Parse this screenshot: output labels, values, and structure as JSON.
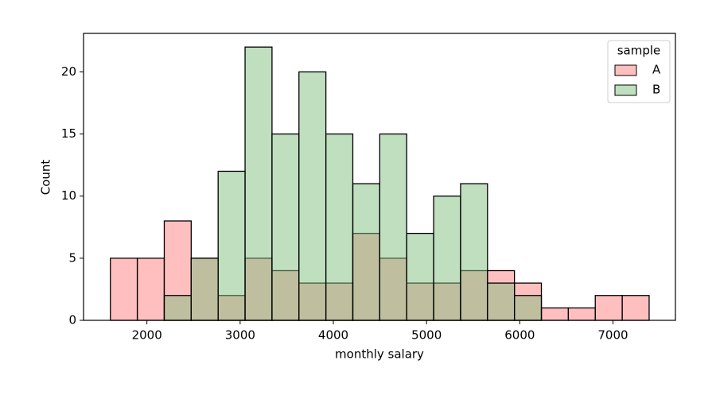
{
  "chart_data": {
    "type": "histogram",
    "xlabel": "monthly salary",
    "ylabel": "Count",
    "bins": [
      1608,
      1897,
      2186,
      2475,
      2764,
      3053,
      3342,
      3631,
      3920,
      4209,
      4498,
      4787,
      5076,
      5365,
      5654,
      5943,
      6232,
      6521,
      6810,
      7099,
      7388
    ],
    "series": [
      {
        "name": "A",
        "color": "#ff8080",
        "values": [
          5,
          5,
          8,
          5,
          2,
          5,
          4,
          3,
          3,
          7,
          5,
          3,
          3,
          4,
          4,
          3,
          1,
          1,
          2,
          2
        ]
      },
      {
        "name": "B",
        "color": "#80c080",
        "values": [
          0,
          0,
          2,
          5,
          12,
          22,
          15,
          20,
          15,
          11,
          15,
          7,
          10,
          11,
          3,
          2,
          0,
          0,
          0,
          0
        ]
      }
    ],
    "legend_title": "sample",
    "legend": "upper right",
    "xlim": [
      1320,
      7670
    ],
    "ylim": [
      0,
      23.1
    ],
    "xticks": [
      2000,
      3000,
      4000,
      5000,
      6000,
      7000
    ],
    "yticks": [
      0,
      5,
      10,
      15,
      20
    ]
  }
}
